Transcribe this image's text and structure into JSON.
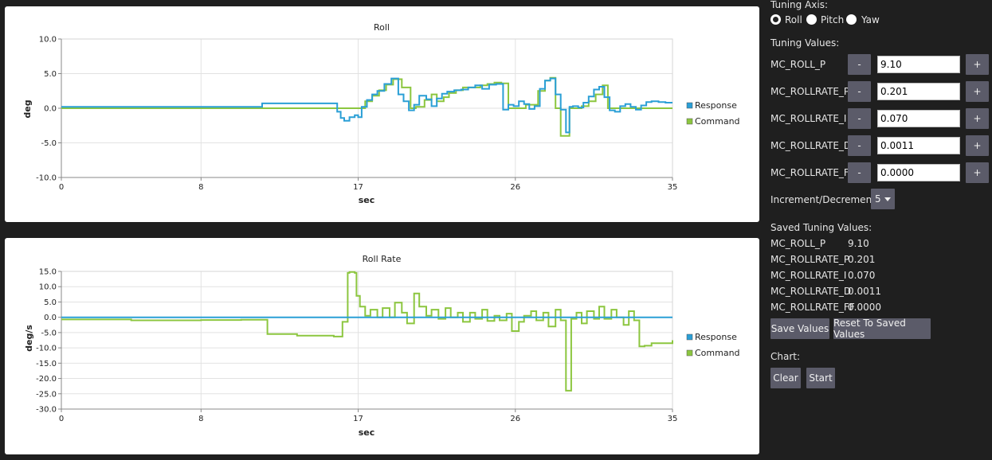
{
  "charts": [
    {
      "id": "roll",
      "title": "Roll",
      "xlabel": "sec",
      "ylabel": "deg",
      "x_ticks": [
        "0",
        "8",
        "17",
        "26",
        "35"
      ],
      "y_ticks": [
        "10.0",
        "5.0",
        "0.0",
        "-5.0",
        "-10.0"
      ],
      "legend": [
        "Response",
        "Command"
      ]
    },
    {
      "id": "rollrate",
      "title": "Roll Rate",
      "xlabel": "sec",
      "ylabel": "deg/s",
      "x_ticks": [
        "0",
        "8",
        "17",
        "26",
        "35"
      ],
      "y_ticks": [
        "15.0",
        "10.0",
        "5.0",
        "0.0",
        "-5.0",
        "-10.0",
        "-15.0",
        "-20.0",
        "-25.0",
        "-30.0"
      ],
      "legend": [
        "Response",
        "Command"
      ]
    }
  ],
  "chart_data": [
    {
      "type": "line",
      "title": "Roll",
      "xlabel": "sec",
      "ylabel": "deg",
      "xlim": [
        0,
        35
      ],
      "ylim": [
        -10,
        10
      ],
      "grid": true,
      "legend_position": "right",
      "series": [
        {
          "name": "Response",
          "color": "#2a9fd6",
          "x": [
            0,
            11.4,
            11.5,
            15.6,
            15.8,
            16.0,
            16.2,
            16.5,
            16.8,
            17.0,
            17.2,
            17.5,
            17.8,
            18.1,
            18.5,
            18.9,
            19.3,
            19.6,
            19.9,
            20.2,
            20.5,
            20.9,
            21.2,
            21.5,
            21.8,
            22.1,
            22.5,
            22.9,
            23.3,
            23.7,
            24.1,
            24.5,
            24.9,
            25.3,
            25.6,
            25.9,
            26.2,
            26.5,
            26.8,
            27.1,
            27.4,
            27.7,
            28.0,
            28.3,
            28.6,
            28.9,
            29.1,
            29.3,
            29.6,
            29.9,
            30.2,
            30.5,
            30.8,
            31.1,
            31.4,
            31.7,
            32.0,
            32.3,
            32.6,
            32.9,
            33.2,
            33.5,
            33.8,
            34.2,
            34.6,
            35.0
          ],
          "y": [
            0.2,
            0.2,
            0.7,
            0.7,
            -0.5,
            -1.4,
            -1.8,
            -1.3,
            -1.0,
            -1.3,
            0.2,
            1.2,
            2.0,
            2.5,
            3.5,
            4.3,
            2.0,
            1.0,
            -0.3,
            0.5,
            1.8,
            1.3,
            0.3,
            1.4,
            2.1,
            2.4,
            2.6,
            2.7,
            3.0,
            3.3,
            2.8,
            3.4,
            3.5,
            -0.2,
            0.5,
            0.3,
            1.0,
            0.6,
            -0.1,
            0.3,
            2.8,
            4.0,
            4.3,
            2.0,
            -0.2,
            -3.5,
            0.2,
            0.3,
            0.1,
            0.8,
            1.7,
            2.7,
            3.1,
            1.6,
            -0.3,
            -0.5,
            0.3,
            0.6,
            0.2,
            -0.2,
            0.4,
            0.9,
            1.0,
            0.9,
            0.8,
            0.8
          ]
        },
        {
          "name": "Command",
          "color": "#8cc63f",
          "x": [
            0,
            15.6,
            16.0,
            16.5,
            17.0,
            17.4,
            17.8,
            18.2,
            18.6,
            19.0,
            19.5,
            20.0,
            20.3,
            20.8,
            21.2,
            21.5,
            21.9,
            22.2,
            22.6,
            23.0,
            23.5,
            24.0,
            24.4,
            24.8,
            25.2,
            25.6,
            25.9,
            26.3,
            26.6,
            27.0,
            27.3,
            27.7,
            28.0,
            28.3,
            28.6,
            28.8,
            29.1,
            29.4,
            29.8,
            30.2,
            30.6,
            31.0,
            31.3,
            31.6,
            32.0,
            32.3,
            32.6,
            32.9,
            33.2,
            35.0
          ],
          "y": [
            0.0,
            0.0,
            0.0,
            0.0,
            0.0,
            1.0,
            1.8,
            2.6,
            3.4,
            4.2,
            3.0,
            0.0,
            0.2,
            1.2,
            2.0,
            1.0,
            1.6,
            2.2,
            2.6,
            3.0,
            3.0,
            3.3,
            3.5,
            3.7,
            3.6,
            0.0,
            0.0,
            0.0,
            0.5,
            0.5,
            2.5,
            4.0,
            4.4,
            0.0,
            -4.0,
            -4.0,
            0.0,
            0.0,
            0.3,
            1.0,
            2.0,
            3.3,
            0.0,
            0.0,
            0.0,
            0.0,
            0.0,
            0.0,
            0.0,
            0.0
          ]
        }
      ]
    },
    {
      "type": "line",
      "title": "Roll Rate",
      "xlabel": "sec",
      "ylabel": "deg/s",
      "xlim": [
        0,
        35
      ],
      "ylim": [
        -30,
        15
      ],
      "grid": true,
      "legend_position": "right",
      "series": [
        {
          "name": "Response",
          "color": "#2a9fd6",
          "x": [
            0,
            35
          ],
          "y": [
            0.0,
            0.0
          ]
        },
        {
          "name": "Command",
          "color": "#8cc63f",
          "x": [
            0,
            4.0,
            8.0,
            10.3,
            11.7,
            11.8,
            13.5,
            15.6,
            16.0,
            16.1,
            16.4,
            16.5,
            16.8,
            16.9,
            17.1,
            17.4,
            17.7,
            18.1,
            18.4,
            18.8,
            19.1,
            19.5,
            19.8,
            20.2,
            20.5,
            20.9,
            21.2,
            21.6,
            22.0,
            22.3,
            22.7,
            23.0,
            23.4,
            23.7,
            24.1,
            24.4,
            24.8,
            25.1,
            25.5,
            25.8,
            26.2,
            26.5,
            26.9,
            27.2,
            27.6,
            27.9,
            28.3,
            28.6,
            28.9,
            29.2,
            29.5,
            29.8,
            30.1,
            30.5,
            30.8,
            31.1,
            31.5,
            31.8,
            32.2,
            32.5,
            32.8,
            33.1,
            33.4,
            33.8,
            35.0
          ],
          "y": [
            -0.7,
            -1.0,
            -0.9,
            -0.8,
            -0.8,
            -5.5,
            -6.0,
            -6.3,
            -6.3,
            -1.5,
            14.5,
            14.8,
            14.5,
            7.0,
            3.5,
            0.5,
            2.5,
            0.0,
            3.0,
            0.0,
            4.8,
            1.5,
            -2.0,
            7.8,
            3.5,
            0.5,
            2.5,
            -0.5,
            3.0,
            0.0,
            1.5,
            -1.5,
            1.5,
            -0.5,
            2.5,
            -1.2,
            0.5,
            -1.0,
            1.2,
            -4.5,
            -1.5,
            0.5,
            2.0,
            -1.0,
            1.5,
            -3.0,
            2.5,
            -1.0,
            -24.0,
            -0.5,
            1.5,
            -2.0,
            2.0,
            -0.5,
            3.5,
            -0.5,
            2.5,
            0.0,
            -2.5,
            2.0,
            -1.0,
            -9.5,
            -9.3,
            -8.5,
            -7.5
          ]
        }
      ]
    }
  ],
  "sidebar": {
    "tuning_axis_label": "Tuning Axis:",
    "axes": [
      {
        "label": "Roll",
        "selected": true
      },
      {
        "label": "Pitch",
        "selected": false
      },
      {
        "label": "Yaw",
        "selected": false
      }
    ],
    "tuning_values_label": "Tuning Values:",
    "params": [
      {
        "name": "MC_ROLL_P",
        "minus": "-",
        "value": "9.10",
        "plus": "+"
      },
      {
        "name": "MC_ROLLRATE_P",
        "minus": "-",
        "value": "0.201",
        "plus": "+"
      },
      {
        "name": "MC_ROLLRATE_I",
        "minus": "-",
        "value": "0.070",
        "plus": "+"
      },
      {
        "name": "MC_ROLLRATE_D",
        "minus": "-",
        "value": "0.0011",
        "plus": "+"
      },
      {
        "name": "MC_ROLLRATE_FF",
        "minus": "-",
        "value": "0.0000",
        "plus": "+"
      }
    ],
    "increment_label": "Increment/Decrement %",
    "increment_value": "5",
    "saved_label": "Saved Tuning Values:",
    "saved": [
      {
        "name": "MC_ROLL_P",
        "value": "9.10"
      },
      {
        "name": "MC_ROLLRATE_P",
        "value": "0.201"
      },
      {
        "name": "MC_ROLLRATE_I",
        "value": "0.070"
      },
      {
        "name": "MC_ROLLRATE_D",
        "value": "0.0011"
      },
      {
        "name": "MC_ROLLRATE_FF",
        "value": "0.0000"
      }
    ],
    "save_button": "Save Values",
    "reset_button": "Reset To Saved Values",
    "chart_label": "Chart:",
    "clear_button": "Clear",
    "start_button": "Start"
  }
}
